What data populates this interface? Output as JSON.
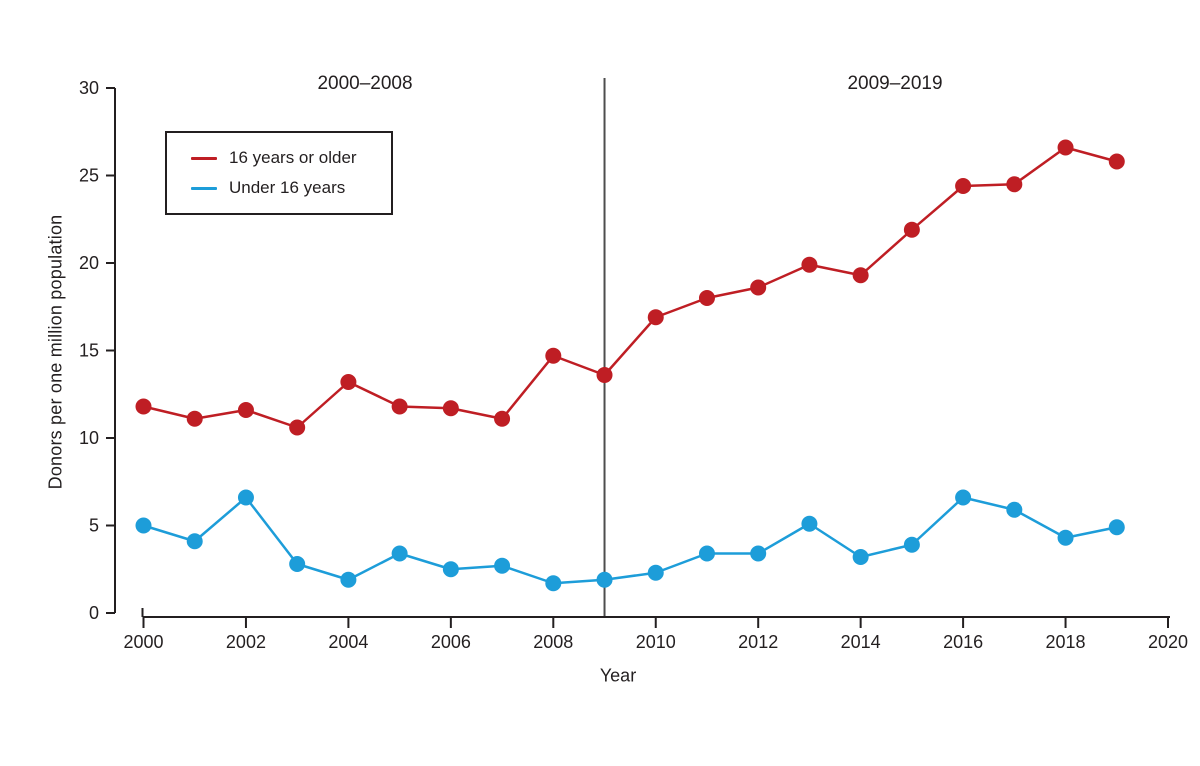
{
  "figure": {
    "background": "#ffffff",
    "text_color": "#231f20",
    "axis_color": "#231f20",
    "divider_color": "#4d4d4d"
  },
  "chart_data": {
    "type": "line",
    "title": "",
    "xlabel": "Year",
    "ylabel": "Donors per one million population",
    "x": [
      2000,
      2001,
      2002,
      2003,
      2004,
      2005,
      2006,
      2007,
      2008,
      2009,
      2010,
      2011,
      2012,
      2013,
      2014,
      2015,
      2016,
      2017,
      2018,
      2019
    ],
    "xlim": [
      2000,
      2020
    ],
    "ylim": [
      0,
      30
    ],
    "x_ticks": [
      2000,
      2002,
      2004,
      2006,
      2008,
      2010,
      2012,
      2014,
      2016,
      2018,
      2020
    ],
    "y_ticks": [
      0,
      5,
      10,
      15,
      20,
      25,
      30
    ],
    "grid": false,
    "marker": "circle",
    "marker_radius": 8,
    "legend_position": "upper-left-inside",
    "divider_x": 2009,
    "annotations": [
      {
        "text": "2000–2008",
        "anchor": "left-period"
      },
      {
        "text": "2009–2019",
        "anchor": "right-period"
      }
    ],
    "series": [
      {
        "name": "16 years or older",
        "color": "#bf1e24",
        "values": [
          11.8,
          11.1,
          11.6,
          10.6,
          13.2,
          11.8,
          11.7,
          11.1,
          14.7,
          13.6,
          16.9,
          18.0,
          18.6,
          19.9,
          19.3,
          21.9,
          24.4,
          24.5,
          26.6,
          25.8
        ]
      },
      {
        "name": "Under 16 years",
        "color": "#1d9dd9",
        "values": [
          5.0,
          4.1,
          6.6,
          2.8,
          1.9,
          3.4,
          2.5,
          2.7,
          1.7,
          1.9,
          2.3,
          3.4,
          3.4,
          5.1,
          3.2,
          3.9,
          6.6,
          5.9,
          4.3,
          4.9
        ]
      }
    ]
  }
}
